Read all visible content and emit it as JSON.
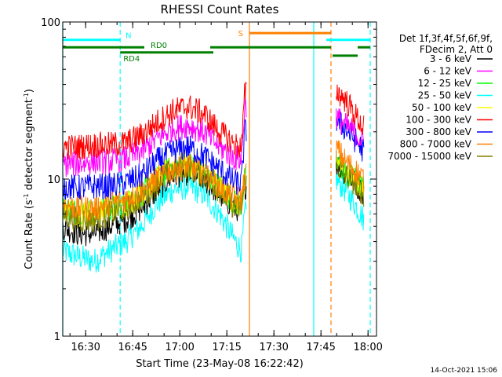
{
  "chart_data": {
    "type": "line",
    "title": "RHESSI Count Rates",
    "xlabel": "Start Time (23-May-08 16:22:42)",
    "ylabel": "Count Rate (s⁻¹ detector segment⁻¹)",
    "ylabel_plain": "Count Rate (s",
    "ylabel_mid": " detector segment",
    "ylabel_end": ")",
    "ylabel_sup": "-1",
    "x_unit": "minutes after 16:22:42",
    "xlim": [
      0,
      100
    ],
    "ylim": [
      1,
      100
    ],
    "y_scale": "log",
    "x_ticks": [
      {
        "label": "16:30",
        "x": 7.3
      },
      {
        "label": "16:45",
        "x": 22.3
      },
      {
        "label": "17:00",
        "x": 37.3
      },
      {
        "label": "17:15",
        "x": 52.3
      },
      {
        "label": "17:30",
        "x": 67.3
      },
      {
        "label": "17:45",
        "x": 82.3
      },
      {
        "label": "18:00",
        "x": 97.3
      }
    ],
    "y_ticks": [
      {
        "label": "1",
        "y": 1
      },
      {
        "label": "10",
        "y": 10
      },
      {
        "label": "100",
        "y": 100
      }
    ],
    "legend_header": [
      "Det 1f,3f,4f,5f,6f,9f,",
      "FDecim 2, Att 0"
    ],
    "legend_position": "right",
    "series": [
      {
        "name": "3 - 6 keV",
        "color": "#000000",
        "x": [
          0,
          5,
          10,
          15,
          20,
          25,
          30,
          35,
          40,
          45,
          50,
          55,
          57,
          58,
          87,
          90,
          93,
          96
        ],
        "y": [
          5.0,
          4.5,
          4.5,
          5.0,
          5.5,
          6.5,
          8.5,
          10.5,
          11.0,
          10.0,
          8.0,
          6.5,
          6.5,
          9.0,
          13.0,
          11.0,
          9.5,
          8.0
        ]
      },
      {
        "name": "6 - 12 keV",
        "color": "#ff00ff",
        "x": [
          0,
          5,
          10,
          15,
          20,
          25,
          30,
          35,
          40,
          45,
          50,
          55,
          57,
          58,
          87,
          90,
          93,
          96
        ],
        "y": [
          12.5,
          12.5,
          13.0,
          13.0,
          13.5,
          15.0,
          18.0,
          21.0,
          22.0,
          20.0,
          16.0,
          13.5,
          13.5,
          30.0,
          25.0,
          22.0,
          20.0,
          17.0
        ]
      },
      {
        "name": "12 - 25 keV",
        "color": "#00ff00",
        "x": [
          0,
          5,
          10,
          15,
          20,
          25,
          30,
          35,
          40,
          45,
          50,
          55,
          57,
          58,
          87,
          90,
          93,
          96
        ],
        "y": [
          6.5,
          6.2,
          6.2,
          6.5,
          7.0,
          8.0,
          10.0,
          12.0,
          12.5,
          11.0,
          9.0,
          7.0,
          7.0,
          10.0,
          13.0,
          11.0,
          10.0,
          8.5
        ]
      },
      {
        "name": "25 - 50 keV",
        "color": "#00ffff",
        "x": [
          0,
          5,
          10,
          15,
          20,
          25,
          30,
          35,
          40,
          45,
          50,
          55,
          57,
          58,
          87,
          90,
          93,
          96
        ],
        "y": [
          3.5,
          3.2,
          3.0,
          3.5,
          4.0,
          5.0,
          7.0,
          8.5,
          9.0,
          8.0,
          6.0,
          4.0,
          3.5,
          6.0,
          10.0,
          8.5,
          7.0,
          5.5
        ]
      },
      {
        "name": "50 - 100 keV",
        "color": "#ffff00",
        "x": [
          0,
          5,
          10,
          15,
          20,
          25,
          30,
          35,
          40,
          45,
          50,
          55,
          57,
          58,
          87,
          90,
          93,
          96
        ],
        "y": [
          6.5,
          6.0,
          6.0,
          6.5,
          7.0,
          8.0,
          10.0,
          12.0,
          12.5,
          11.0,
          9.0,
          7.0,
          7.0,
          10.0,
          13.0,
          11.5,
          10.0,
          8.5
        ]
      },
      {
        "name": "100 - 300 keV",
        "color": "#ff0000",
        "x": [
          0,
          5,
          10,
          15,
          20,
          25,
          30,
          35,
          40,
          45,
          50,
          55,
          57,
          58,
          87,
          90,
          93,
          96
        ],
        "y": [
          16.0,
          16.0,
          16.5,
          16.5,
          17.0,
          19.0,
          23.0,
          27.0,
          29.0,
          26.0,
          20.0,
          16.5,
          16.0,
          35.0,
          37.0,
          32.0,
          26.0,
          21.0
        ]
      },
      {
        "name": "300 - 800 keV",
        "color": "#0000ff",
        "x": [
          0,
          5,
          10,
          15,
          20,
          25,
          30,
          35,
          40,
          45,
          50,
          55,
          57,
          58,
          87,
          90,
          93,
          96
        ],
        "y": [
          9.0,
          8.8,
          9.0,
          9.0,
          9.5,
          10.5,
          13.0,
          15.0,
          16.0,
          14.0,
          11.5,
          9.5,
          9.5,
          20.0,
          24.0,
          21.0,
          18.0,
          15.0
        ]
      },
      {
        "name": "800 - 7000 keV",
        "color": "#ff8000",
        "x": [
          0,
          5,
          10,
          15,
          20,
          25,
          30,
          35,
          40,
          45,
          50,
          55,
          57,
          58,
          87,
          90,
          93,
          96
        ],
        "y": [
          7.0,
          6.5,
          6.5,
          7.0,
          7.5,
          8.5,
          10.0,
          11.5,
          12.0,
          11.0,
          9.0,
          7.5,
          7.5,
          10.5,
          16.0,
          13.0,
          11.5,
          10.0
        ]
      },
      {
        "name": "7000 - 15000 keV",
        "color": "#808000",
        "x": [
          0,
          5,
          10,
          15,
          20,
          25,
          30,
          35,
          40,
          45,
          50,
          55,
          57,
          58,
          87,
          90,
          93,
          96
        ],
        "y": [
          6.0,
          5.5,
          5.5,
          6.0,
          6.5,
          7.5,
          9.5,
          11.5,
          12.0,
          10.5,
          8.5,
          6.5,
          6.5,
          9.5,
          12.5,
          10.5,
          9.5,
          8.0
        ]
      }
    ],
    "gaps": [
      [
        58.5,
        87
      ]
    ],
    "vertical_markers": [
      {
        "x": 0.0,
        "color": "#00ffff",
        "style": "solid"
      },
      {
        "x": 18.3,
        "color": "#00ffff",
        "style": "dashed"
      },
      {
        "x": 59.5,
        "color": "#ff8000",
        "style": "solid"
      },
      {
        "x": 80.0,
        "color": "#00ffff",
        "style": "solid"
      },
      {
        "x": 85.5,
        "color": "#ff8000",
        "style": "dashed"
      },
      {
        "x": 98.0,
        "color": "#00ffff",
        "style": "dashed"
      }
    ],
    "flag_bars": [
      {
        "label": "N",
        "color": "#00ffff",
        "y": 77,
        "segments": [
          [
            0,
            18.3
          ],
          [
            84,
            98
          ]
        ]
      },
      {
        "label": "S",
        "color": "#ff8000",
        "y": 85,
        "segments": [
          [
            59.5,
            85.5
          ]
        ]
      },
      {
        "label": "RD0",
        "color": "#008000",
        "y": 69,
        "segments": [
          [
            0,
            26
          ],
          [
            47,
            85.5
          ],
          [
            94,
            98
          ]
        ]
      },
      {
        "label": "RD4",
        "color": "#008000",
        "y": 64,
        "segments": [
          [
            18.3,
            48
          ]
        ]
      },
      {
        "label": "",
        "color": "#008000",
        "y": 61,
        "segments": [
          [
            86,
            94
          ]
        ]
      }
    ],
    "timestamp": "14-Oct-2021 15:06"
  }
}
